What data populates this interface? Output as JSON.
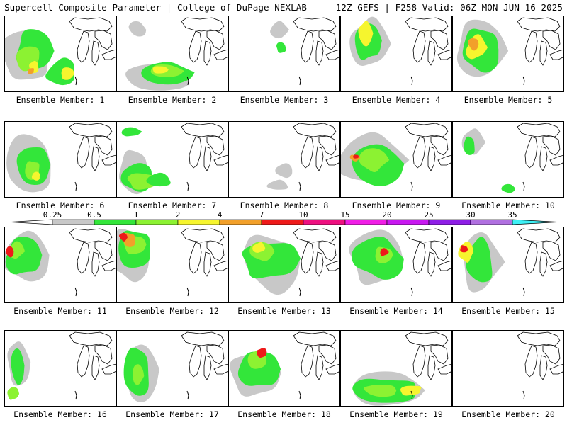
{
  "header": {
    "title": "Supercell Composite Parameter | College of DuPage NEXLAB",
    "run_info": "12Z GEFS | F258 Valid: 06Z MON JUN 16 2025"
  },
  "legend": {
    "levels": [
      "0.25",
      "0.5",
      "1",
      "2",
      "4",
      "7",
      "10",
      "15",
      "20",
      "25",
      "30",
      "35"
    ],
    "colors": [
      "#c8c8c8",
      "#33e63a",
      "#8cf232",
      "#f6f52e",
      "#f2a02a",
      "#ee1a1a",
      "#ee1080",
      "#f01ee6",
      "#c818f0",
      "#8e1ee6",
      "#b070e0",
      "#3ef0f5"
    ]
  },
  "panels": [
    {
      "label": "Ensemble Member: 1",
      "intensity": "high"
    },
    {
      "label": "Ensemble Member: 2",
      "intensity": "moderate"
    },
    {
      "label": "Ensemble Member: 3",
      "intensity": "low"
    },
    {
      "label": "Ensemble Member: 4",
      "intensity": "moderate"
    },
    {
      "label": "Ensemble Member: 5",
      "intensity": "high"
    },
    {
      "label": "Ensemble Member: 6",
      "intensity": "moderate"
    },
    {
      "label": "Ensemble Member: 7",
      "intensity": "moderate"
    },
    {
      "label": "Ensemble Member: 8",
      "intensity": "low"
    },
    {
      "label": "Ensemble Member: 9",
      "intensity": "high"
    },
    {
      "label": "Ensemble Member: 10",
      "intensity": "low"
    },
    {
      "label": "Ensemble Member: 11",
      "intensity": "high"
    },
    {
      "label": "Ensemble Member: 12",
      "intensity": "high"
    },
    {
      "label": "Ensemble Member: 13",
      "intensity": "moderate"
    },
    {
      "label": "Ensemble Member: 14",
      "intensity": "high"
    },
    {
      "label": "Ensemble Member: 15",
      "intensity": "high"
    },
    {
      "label": "Ensemble Member: 16",
      "intensity": "low"
    },
    {
      "label": "Ensemble Member: 17",
      "intensity": "moderate"
    },
    {
      "label": "Ensemble Member: 18",
      "intensity": "high"
    },
    {
      "label": "Ensemble Member: 19",
      "intensity": "moderate"
    },
    {
      "label": "Ensemble Member: 20",
      "intensity": "none"
    }
  ]
}
